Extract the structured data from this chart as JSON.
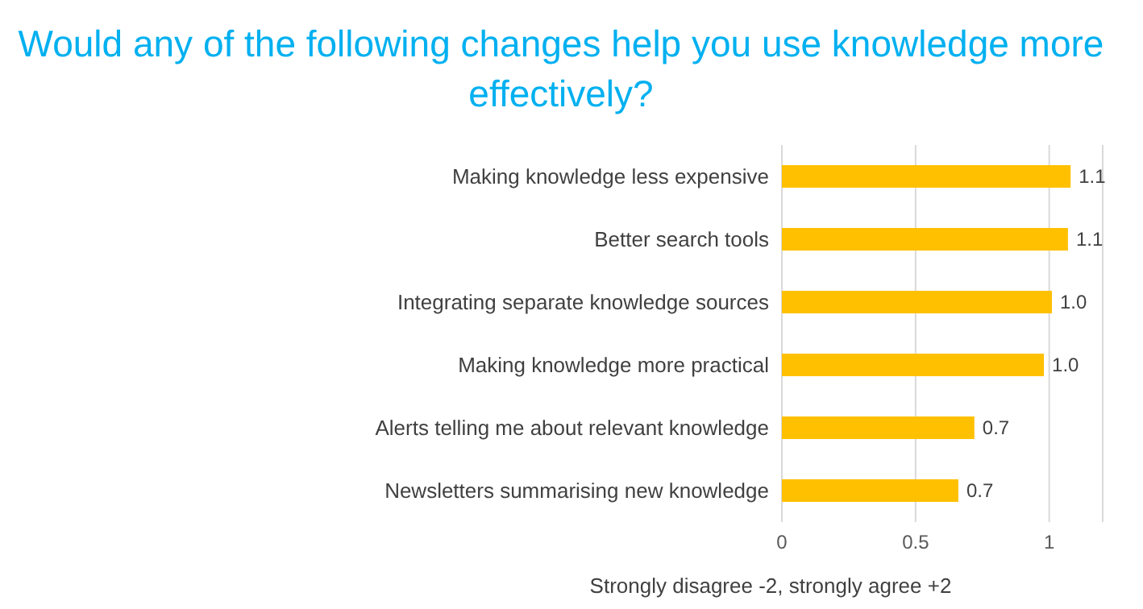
{
  "chart_data": {
    "type": "bar",
    "orientation": "horizontal",
    "title": "Would any of the following changes help you use knowledge more effectively?",
    "xlabel": "Strongly disagree -2, strongly agree +2",
    "categories": [
      "Making knowledge less expensive",
      "Better search tools",
      "Integrating separate knowledge sources",
      "Making knowledge more practical",
      "Alerts telling me about relevant knowledge",
      "Newsletters summarising new knowledge"
    ],
    "values": [
      1.08,
      1.07,
      1.01,
      0.98,
      0.72,
      0.66
    ],
    "value_labels": [
      "1.1",
      "1.1",
      "1.0",
      "1.0",
      "0.7",
      "0.7"
    ],
    "color": "#ffc000",
    "xlim": [
      0,
      1.2
    ],
    "xticks": [
      0,
      0.5,
      1
    ],
    "grid": "x"
  }
}
